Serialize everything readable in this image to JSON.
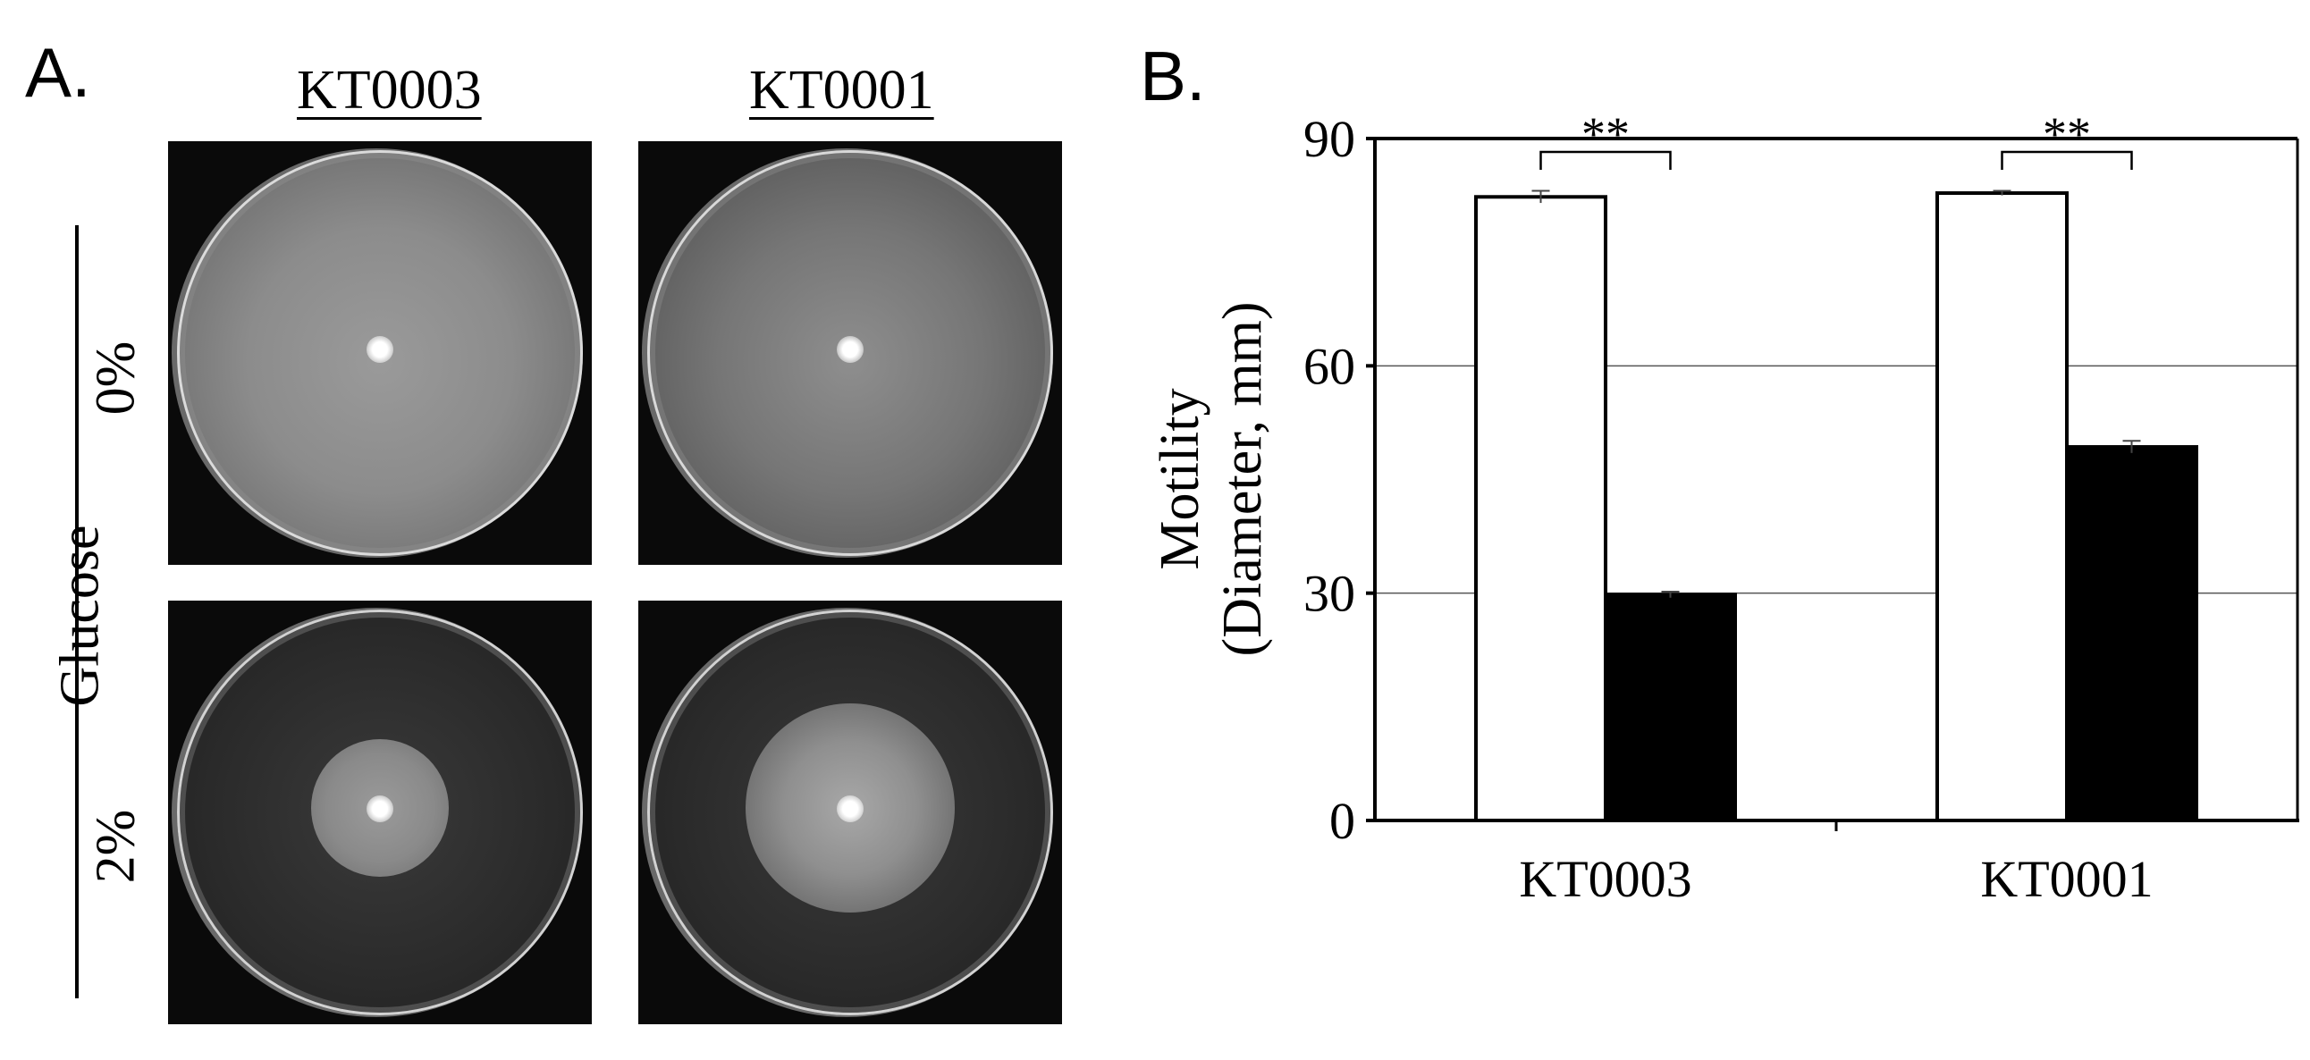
{
  "panel_a": {
    "label": "A.",
    "strains": [
      "KT0003",
      "KT0001"
    ],
    "factor_label": "Glucose",
    "concentrations": [
      "0%",
      "2%"
    ]
  },
  "panel_b": {
    "label": "B."
  },
  "chart_data": {
    "type": "bar",
    "categories": [
      "KT0003",
      "KT0001"
    ],
    "series": [
      {
        "values": [
          82.3,
          82.8
        ],
        "errors": [
          0.8,
          0.3
        ],
        "color": "#ffffff"
      },
      {
        "values": [
          29.8,
          49.3
        ],
        "errors": [
          0.4,
          0.8
        ],
        "color": "#000000"
      }
    ],
    "ylabel_line1": "Motility",
    "ylabel_line2": "(Diameter, mm)",
    "ylim": [
      0,
      90
    ],
    "yticks": [
      0,
      30,
      60,
      90
    ],
    "grid": true,
    "significance": [
      "**",
      "**"
    ]
  }
}
